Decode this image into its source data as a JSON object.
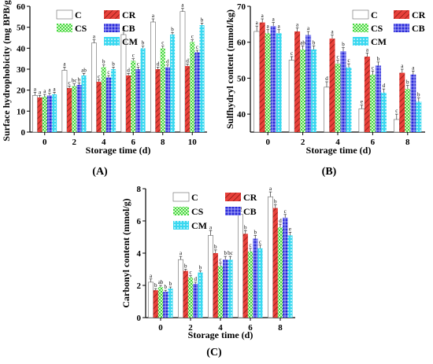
{
  "legend_entries": [
    "C",
    "CR",
    "CS",
    "CB",
    "CM"
  ],
  "colors": {
    "C": "#ffffff",
    "CR": "#e8403a",
    "CS": "#45d845",
    "CB": "#2a2ad8",
    "CM": "#3ad8f0"
  },
  "chart_data": [
    {
      "type": "bar",
      "panel": "(A)",
      "xlabel": "Storage time (d)",
      "ylabel": "Surface hydrophobicity (mg BPB/g)",
      "categories": [
        "0",
        "2",
        "4",
        "6",
        "8",
        "10"
      ],
      "ylim": [
        0,
        60
      ],
      "yticks": [
        0,
        10,
        20,
        30,
        40,
        50,
        60
      ],
      "legend_placement": "top-left",
      "series": [
        {
          "name": "C",
          "values": [
            17.5,
            29.5,
            42.5,
            46.5,
            52.5,
            57.5
          ],
          "errors": [
            1.5,
            1.5,
            1.5,
            2.0,
            1.5,
            1.5
          ],
          "letters": [
            "a",
            "a",
            "a",
            "a",
            "a",
            "a"
          ]
        },
        {
          "name": "CR",
          "values": [
            16.5,
            21.0,
            24.0,
            27.0,
            30.0,
            31.5
          ],
          "errors": [
            1.0,
            1.0,
            1.0,
            1.0,
            1.0,
            1.0
          ],
          "letters": [
            "a",
            "c",
            "c",
            "d",
            "d",
            "d"
          ]
        },
        {
          "name": "CS",
          "values": [
            17.0,
            22.0,
            31.0,
            34.0,
            40.0,
            43.0
          ],
          "errors": [
            1.0,
            1.0,
            1.0,
            1.0,
            1.0,
            1.0
          ],
          "letters": [
            "a",
            "bc",
            "b",
            "c",
            "c",
            "c"
          ]
        },
        {
          "name": "CB",
          "values": [
            17.5,
            22.5,
            26.0,
            30.0,
            31.0,
            38.0
          ],
          "errors": [
            1.0,
            1.0,
            1.0,
            1.0,
            1.0,
            1.0
          ],
          "letters": [
            "a",
            "b",
            "c",
            "c",
            "d",
            "c"
          ]
        },
        {
          "name": "CM",
          "values": [
            18.0,
            27.0,
            30.0,
            40.0,
            46.5,
            51.0
          ],
          "errors": [
            1.0,
            1.0,
            1.0,
            1.0,
            1.0,
            1.0
          ],
          "letters": [
            "a",
            "ab",
            "b",
            "b",
            "b",
            "b"
          ]
        }
      ]
    },
    {
      "type": "bar",
      "panel": "(B)",
      "xlabel": "Storage time (d)",
      "ylabel": "Sulfhydryl content (mmol/kg)",
      "categories": [
        "0",
        "2",
        "4",
        "6",
        "8"
      ],
      "ylim": [
        35,
        70
      ],
      "yticks": [
        40,
        50,
        60,
        70
      ],
      "legend_placement": "top-right",
      "series": [
        {
          "name": "C",
          "values": [
            63.0,
            55.0,
            47.5,
            41.5,
            38.5
          ],
          "errors": [
            1.5,
            1.0,
            1.5,
            1.0,
            1.5
          ],
          "letters": [
            "a",
            "c",
            "d",
            "e",
            "c"
          ]
        },
        {
          "name": "CR",
          "values": [
            65.5,
            63.0,
            61.0,
            56.0,
            51.5
          ],
          "errors": [
            1.0,
            1.0,
            1.0,
            1.0,
            1.0
          ],
          "letters": [
            "a",
            "a",
            "a",
            "a",
            "a"
          ]
        },
        {
          "name": "CS",
          "values": [
            62.5,
            58.0,
            54.0,
            51.0,
            47.0
          ],
          "errors": [
            1.0,
            1.0,
            1.0,
            1.0,
            1.0
          ],
          "letters": [
            "a",
            "ab",
            "c",
            "c",
            "b"
          ]
        },
        {
          "name": "CB",
          "values": [
            64.5,
            62.0,
            57.5,
            53.5,
            51.0
          ],
          "errors": [
            1.0,
            1.0,
            1.0,
            1.0,
            1.0
          ],
          "letters": [
            "a",
            "a",
            "b",
            "b",
            "a"
          ]
        },
        {
          "name": "CM",
          "values": [
            62.5,
            58.0,
            53.0,
            46.0,
            43.5
          ],
          "errors": [
            1.0,
            1.0,
            1.0,
            1.0,
            1.0
          ],
          "letters": [
            "a",
            "b",
            "c",
            "d",
            "b"
          ]
        }
      ]
    },
    {
      "type": "bar",
      "panel": "(C)",
      "xlabel": "Storage time (d)",
      "ylabel": "Carbonyl content (mmol/g)",
      "categories": [
        "0",
        "2",
        "4",
        "6",
        "8"
      ],
      "ylim": [
        0,
        8
      ],
      "yticks": [
        0,
        2,
        4,
        6,
        8
      ],
      "legend_placement": "top-left",
      "series": [
        {
          "name": "C",
          "values": [
            2.2,
            3.6,
            5.1,
            6.4,
            7.5
          ],
          "errors": [
            0.2,
            0.2,
            0.3,
            0.2,
            0.3
          ],
          "letters": [
            "a",
            "a",
            "a",
            "a",
            "a"
          ]
        },
        {
          "name": "CR",
          "values": [
            1.7,
            2.9,
            4.0,
            5.2,
            6.8
          ],
          "errors": [
            0.1,
            0.1,
            0.2,
            0.2,
            0.2
          ],
          "letters": [
            "b",
            "b",
            "b",
            "b",
            "b"
          ]
        },
        {
          "name": "CS",
          "values": [
            1.9,
            2.5,
            3.2,
            4.1,
            5.6
          ],
          "errors": [
            0.1,
            0.1,
            0.2,
            0.2,
            0.2
          ],
          "letters": [
            "ab",
            "c",
            "c",
            "c",
            "d"
          ]
        },
        {
          "name": "CB",
          "values": [
            1.6,
            2.1,
            3.6,
            4.9,
            6.2
          ],
          "errors": [
            0.1,
            0.1,
            0.2,
            0.2,
            0.2
          ],
          "letters": [
            "b",
            "d",
            "b",
            "b",
            "c"
          ]
        },
        {
          "name": "CM",
          "values": [
            1.8,
            2.8,
            3.6,
            4.3,
            5.1
          ],
          "errors": [
            0.1,
            0.1,
            0.2,
            0.2,
            0.2
          ],
          "letters": [
            "b",
            "b",
            "bc",
            "c",
            "e"
          ]
        }
      ]
    }
  ]
}
